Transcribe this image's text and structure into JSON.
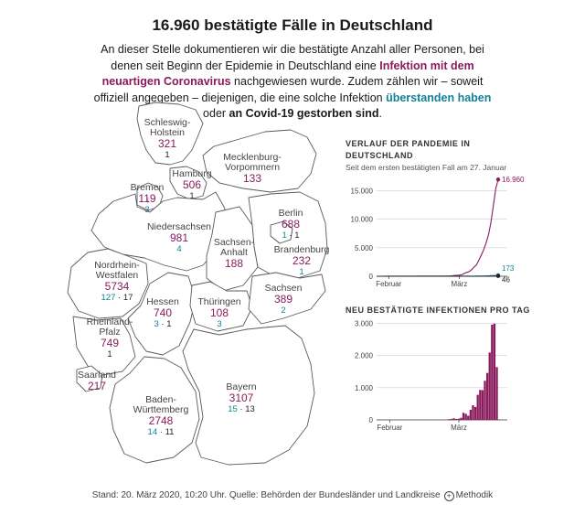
{
  "header": {
    "title": "16.960 bestätigte Fälle in Deutschland",
    "intro_1": "An dieser Stelle dokumentieren wir die bestätigte Anzahl aller Personen, bei denen seit Beginn der Epidemie in Deutschland eine ",
    "intro_2": "Infektion mit dem neuartigen Coronavirus",
    "intro_3": " nachgewiesen wurde. Zudem zählen wir – soweit offiziell angegeben – diejenigen, die eine solche Infektion ",
    "intro_4": "überstanden haben",
    "intro_5": " oder ",
    "intro_6": "an Covid-19 gestorben sind",
    "intro_7": "."
  },
  "colors": {
    "cases": "#8a1b5c",
    "recovered": "#12819a",
    "deaths": "#222222"
  },
  "states": [
    {
      "id": "schleswig-holstein",
      "name1": "Schleswig-",
      "name2": "Holstein",
      "cases": "321",
      "recovered": "",
      "deaths": "1"
    },
    {
      "id": "mecklenburg-vorpommern",
      "name1": "Mecklenburg-",
      "name2": "Vorpommern",
      "cases": "133",
      "recovered": "",
      "deaths": ""
    },
    {
      "id": "hamburg",
      "name1": "Hamburg",
      "name2": "",
      "cases": "506",
      "recovered": "",
      "deaths": "1"
    },
    {
      "id": "bremen",
      "name1": "Bremen",
      "name2": "",
      "cases": "119",
      "recovered": "3",
      "deaths": ""
    },
    {
      "id": "niedersachsen",
      "name1": "Niedersachsen",
      "name2": "",
      "cases": "981",
      "recovered": "4",
      "deaths": ""
    },
    {
      "id": "berlin",
      "name1": "Berlin",
      "name2": "",
      "cases": "688",
      "recovered": "1",
      "deaths": "1"
    },
    {
      "id": "brandenburg",
      "name1": "Brandenburg",
      "name2": "",
      "cases": "232",
      "recovered": "1",
      "deaths": ""
    },
    {
      "id": "sachsen-anhalt",
      "name1": "Sachsen-",
      "name2": "Anhalt",
      "cases": "188",
      "recovered": "",
      "deaths": ""
    },
    {
      "id": "nordrhein-westfalen",
      "name1": "Nordrhein-",
      "name2": "Westfalen",
      "cases": "5734",
      "recovered": "127",
      "deaths": "17"
    },
    {
      "id": "hessen",
      "name1": "Hessen",
      "name2": "",
      "cases": "740",
      "recovered": "3",
      "deaths": "1"
    },
    {
      "id": "thueringen",
      "name1": "Thüringen",
      "name2": "",
      "cases": "108",
      "recovered": "3",
      "deaths": ""
    },
    {
      "id": "sachsen",
      "name1": "Sachsen",
      "name2": "",
      "cases": "389",
      "recovered": "2",
      "deaths": ""
    },
    {
      "id": "rheinland-pfalz",
      "name1": "Rheinland-",
      "name2": "Pfalz",
      "cases": "749",
      "recovered": "",
      "deaths": "1"
    },
    {
      "id": "saarland",
      "name1": "Saarland",
      "name2": "",
      "cases": "217",
      "recovered": "",
      "deaths": ""
    },
    {
      "id": "baden-wuerttemberg",
      "name1": "Baden-",
      "name2": "Württemberg",
      "cases": "2748",
      "recovered": "14",
      "deaths": "11"
    },
    {
      "id": "bayern",
      "name1": "Bayern",
      "name2": "",
      "cases": "3107",
      "recovered": "15",
      "deaths": "13"
    }
  ],
  "chart_data": [
    {
      "type": "line",
      "title_1": "VERLAUF DER PANDEMIE IN",
      "title_2": "DEUTSCHLAND",
      "subtitle": "Seit dem ersten bestätigten Fall am 27. Januar",
      "x_ticks": [
        "Februar",
        "März"
      ],
      "y_ticks": [
        "15.000",
        "10.000",
        "5.000",
        "0"
      ],
      "ylim": [
        0,
        17000
      ],
      "series": [
        {
          "color": "#8a1b5c",
          "end_label": "16.960",
          "values": [
            1,
            4,
            5,
            8,
            10,
            12,
            12,
            12,
            13,
            14,
            14,
            16,
            16,
            16,
            16,
            16,
            16,
            16,
            16,
            16,
            16,
            16,
            16,
            16,
            16,
            16,
            16,
            18,
            21,
            26,
            48,
            79,
            130,
            159,
            196,
            262,
            482,
            670,
            799,
            1112,
            1565,
            1966,
            2745,
            3675,
            4599,
            5813,
            7272,
            9367,
            12327,
            15320,
            16960
          ]
        },
        {
          "color": "#12819a",
          "end_label": "173",
          "values": [
            0,
            0,
            0,
            0,
            0,
            0,
            0,
            0,
            0,
            0,
            0,
            0,
            1,
            2,
            3,
            5,
            8,
            10,
            12,
            13,
            14,
            14,
            14,
            15,
            15,
            16,
            16,
            16,
            16,
            16,
            16,
            16,
            16,
            16,
            16,
            16,
            16,
            16,
            17,
            18,
            18,
            25,
            46,
            46,
            46,
            60,
            60,
            113,
            113,
            140,
            173
          ]
        },
        {
          "color": "#222222",
          "end_label": "46",
          "values": [
            0,
            0,
            0,
            0,
            0,
            0,
            0,
            0,
            0,
            0,
            0,
            0,
            0,
            0,
            0,
            0,
            0,
            0,
            0,
            0,
            0,
            0,
            0,
            0,
            0,
            0,
            0,
            0,
            0,
            0,
            0,
            0,
            0,
            0,
            0,
            0,
            0,
            0,
            0,
            0,
            2,
            2,
            3,
            6,
            8,
            12,
            13,
            17,
            24,
            28,
            46
          ]
        }
      ]
    },
    {
      "type": "bar",
      "title": "NEU BESTÄTIGTE INFEKTIONEN PRO TAG",
      "x_ticks": [
        "Februar",
        "März"
      ],
      "y_ticks": [
        "3.000",
        "2.000",
        "1.000",
        "0"
      ],
      "ylim": [
        0,
        3100
      ],
      "color": "#8a1b5c",
      "values": [
        1,
        3,
        1,
        3,
        2,
        2,
        0,
        0,
        1,
        1,
        0,
        2,
        0,
        0,
        0,
        0,
        0,
        0,
        0,
        0,
        0,
        0,
        0,
        0,
        0,
        0,
        0,
        2,
        3,
        5,
        22,
        31,
        51,
        29,
        37,
        66,
        220,
        188,
        129,
        313,
        453,
        401,
        779,
        930,
        924,
        1214,
        1459,
        2095,
        2960,
        2993,
        1640
      ]
    }
  ],
  "footer": {
    "text": "Stand: 20. März 2020, 10:20 Uhr. Quelle: Behörden der Bundesländer und Landkreise",
    "link": "Methodik"
  }
}
